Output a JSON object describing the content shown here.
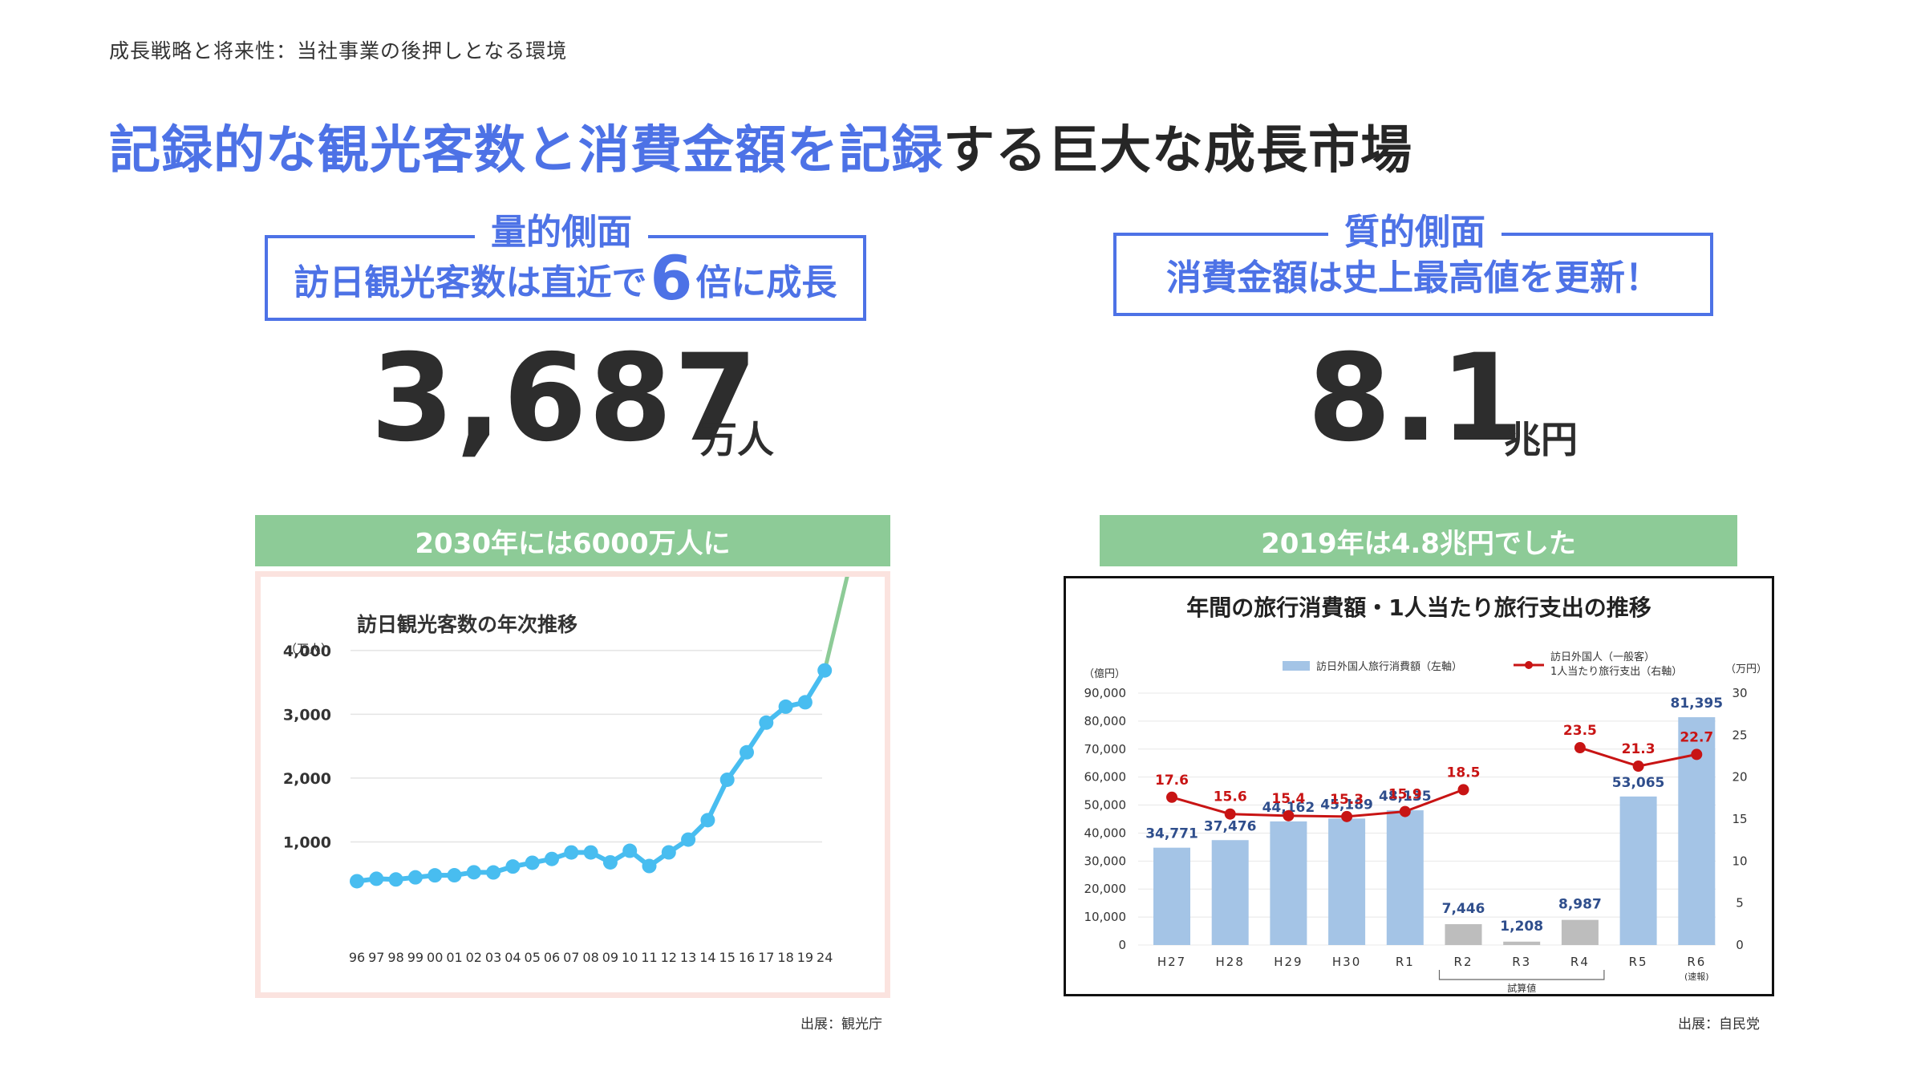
{
  "breadcrumb": "成長戦略と将来性：当社事業の後押しとなる環境",
  "title": {
    "highlight": "記録的な観光客数と消費金額を記録",
    "rest": "する巨大な成長市場"
  },
  "left": {
    "section_label": "量的側面",
    "headline_pre": "訪日観光客数は直近で",
    "headline_num": "6",
    "headline_post": "倍に成長",
    "big_number": "3,687",
    "big_unit": "万人",
    "green_bar": "2030年には6000万人に",
    "source": "出展：観光庁"
  },
  "right": {
    "section_label": "質的側面",
    "headline": "消費金額は史上最高値を更新！",
    "big_number": "8.1",
    "big_unit": "兆円",
    "green_bar": "2019年は4.8兆円でした",
    "source": "出展：自民党"
  },
  "colors": {
    "accent": "#4d72e6",
    "green": "#8dcb97",
    "line_blue": "#48bdf0",
    "bar_blue": "#a4c4e6",
    "bar_gray": "#bdbdbd",
    "line_red": "#c81414"
  },
  "chart_data": [
    {
      "type": "line",
      "title": "訪日観光客数の年次推移",
      "ylabel": "（万人）",
      "yticks": [
        "1,000",
        "2,000",
        "3,000",
        "4,000"
      ],
      "ylim": [
        0,
        4400
      ],
      "x": [
        "96",
        "97",
        "98",
        "99",
        "00",
        "01",
        "02",
        "03",
        "04",
        "05",
        "06",
        "07",
        "08",
        "09",
        "10",
        "11",
        "12",
        "13",
        "14",
        "15",
        "16",
        "17",
        "18",
        "19",
        "24"
      ],
      "values": [
        384,
        422,
        411,
        444,
        476,
        477,
        524,
        521,
        614,
        673,
        733,
        835,
        835,
        679,
        861,
        622,
        836,
        1036,
        1341,
        1974,
        2404,
        2869,
        3119,
        3188,
        3687
      ],
      "projection": {
        "from_index": 24,
        "value": 6000
      }
    },
    {
      "type": "bar+line",
      "title": "年間の旅行消費額・1人当たり旅行支出の推移",
      "left_unit": "（億円）",
      "right_unit": "（万円）",
      "legend_bar": "訪日外国人旅行消費額（左軸）",
      "legend_line_1": "訪日外国人（一般客）",
      "legend_line_2": "1人当たり旅行支出（右軸）",
      "left_ticks": [
        "0",
        "10,000",
        "20,000",
        "30,000",
        "40,000",
        "50,000",
        "60,000",
        "70,000",
        "80,000",
        "90,000"
      ],
      "right_ticks": [
        "0",
        "5",
        "10",
        "15",
        "20",
        "25",
        "30"
      ],
      "left_max": 90000,
      "right_max": 30,
      "categories": [
        "H27",
        "H28",
        "H29",
        "H30",
        "R1",
        "R2",
        "R3",
        "R4",
        "R5",
        "R6"
      ],
      "sub_label_r6": "(速報)",
      "bracket_label": "試算値",
      "bars": [
        {
          "value": 34771,
          "label": "34,771",
          "estimate": false
        },
        {
          "value": 37476,
          "label": "37,476",
          "estimate": false
        },
        {
          "value": 44162,
          "label": "44,162",
          "estimate": false
        },
        {
          "value": 45189,
          "label": "45,189",
          "estimate": false
        },
        {
          "value": 48135,
          "label": "48,135",
          "estimate": false
        },
        {
          "value": 7446,
          "label": "7,446",
          "estimate": true
        },
        {
          "value": 1208,
          "label": "1,208",
          "estimate": true
        },
        {
          "value": 8987,
          "label": "8,987",
          "estimate": true
        },
        {
          "value": 53065,
          "label": "53,065",
          "estimate": false
        },
        {
          "value": 81395,
          "label": "81,395",
          "estimate": false
        }
      ],
      "line_segments": [
        [
          {
            "i": 0,
            "v": 17.6,
            "label": "17.6"
          },
          {
            "i": 1,
            "v": 15.6,
            "label": "15.6"
          },
          {
            "i": 2,
            "v": 15.4,
            "label": "15.4"
          },
          {
            "i": 3,
            "v": 15.3,
            "label": "15.3"
          },
          {
            "i": 4,
            "v": 15.9,
            "label": "15.9"
          },
          {
            "i": 5,
            "v": 18.5,
            "label": "18.5"
          }
        ],
        [
          {
            "i": 7,
            "v": 23.5,
            "label": "23.5"
          },
          {
            "i": 8,
            "v": 21.3,
            "label": "21.3"
          },
          {
            "i": 9,
            "v": 22.7,
            "label": "22.7"
          }
        ]
      ]
    }
  ]
}
